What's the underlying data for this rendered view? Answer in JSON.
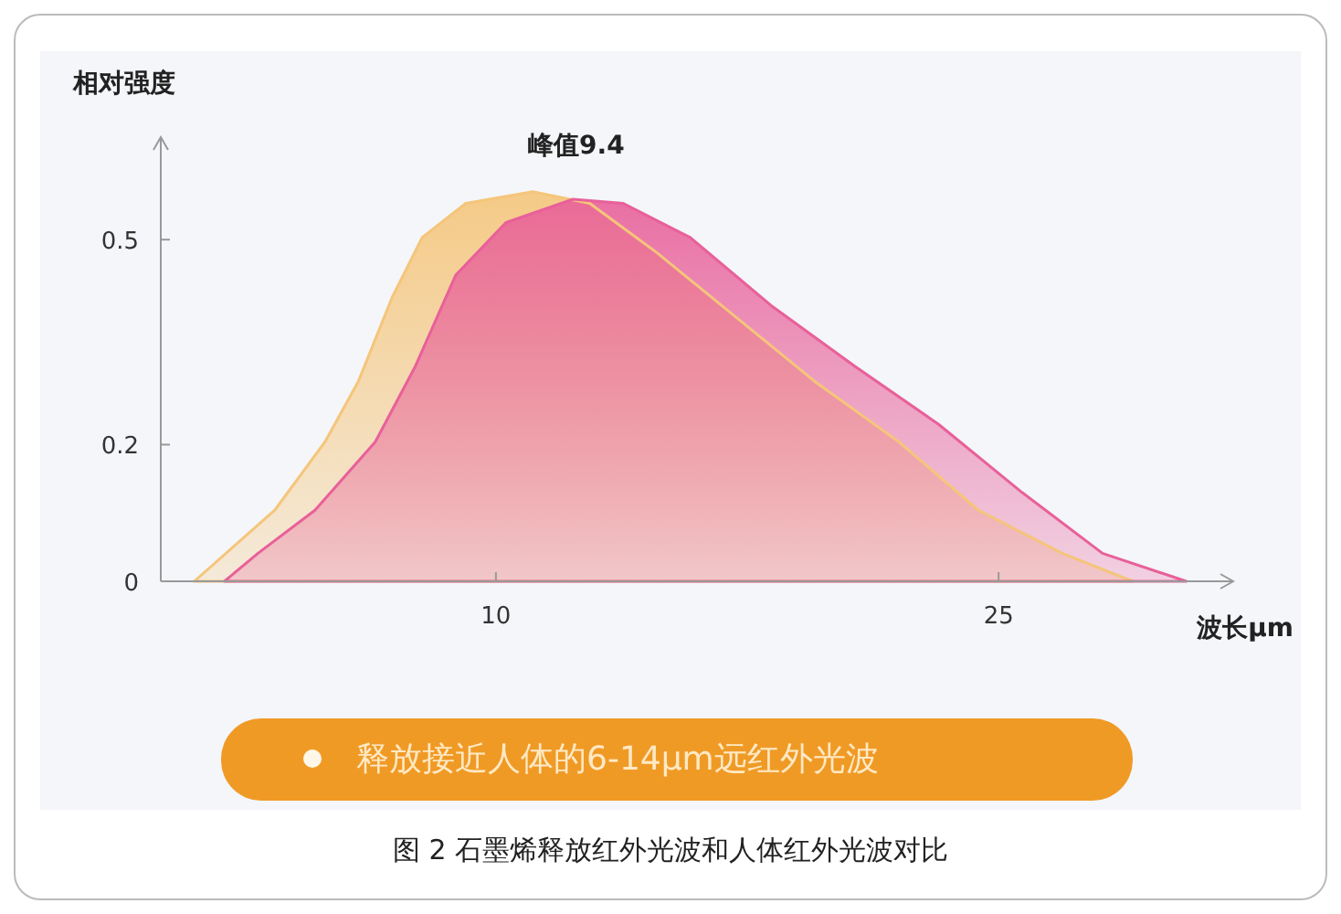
{
  "chart_data": {
    "type": "area",
    "xlabel": "波长μm",
    "ylabel": "相对强度",
    "xlim": [
      0,
      32
    ],
    "ylim": [
      0,
      0.65
    ],
    "xticks": [
      10,
      25
    ],
    "yticks": [
      0,
      0.2,
      0.5
    ],
    "series": [
      {
        "color": "#f5c57a",
        "x": [
          1.0,
          3.4,
          4.9,
          5.9,
          6.9,
          7.8,
          9.1,
          11.1,
          12.8,
          14.8,
          17.0,
          19.5,
          22.0,
          24.4,
          26.9,
          29.0
        ],
        "values": [
          0,
          0.104,
          0.204,
          0.293,
          0.415,
          0.503,
          0.553,
          0.57,
          0.553,
          0.481,
          0.393,
          0.293,
          0.205,
          0.104,
          0.041,
          0
        ]
      },
      {
        "color": "#e8609a",
        "x": [
          1.9,
          2.9,
          4.6,
          6.4,
          7.6,
          8.8,
          10.3,
          12.3,
          13.8,
          15.8,
          18.2,
          20.7,
          23.2,
          25.7,
          28.1,
          30.6
        ],
        "values": [
          0,
          0.041,
          0.104,
          0.204,
          0.315,
          0.448,
          0.525,
          0.559,
          0.553,
          0.503,
          0.404,
          0.315,
          0.23,
          0.13,
          0.041,
          0
        ]
      }
    ],
    "annotations": [
      "峰值9.4",
      "释放接近人体的6-14μm远红外光波",
      "图 2  石墨烯释放红外光波和人体红外光波对比"
    ]
  }
}
